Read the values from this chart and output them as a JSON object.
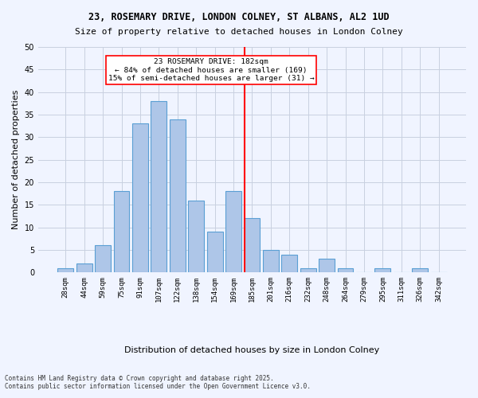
{
  "title1": "23, ROSEMARY DRIVE, LONDON COLNEY, ST ALBANS, AL2 1UD",
  "title2": "Size of property relative to detached houses in London Colney",
  "xlabel": "Distribution of detached houses by size in London Colney",
  "ylabel": "Number of detached properties",
  "categories": [
    "28sqm",
    "44sqm",
    "59sqm",
    "75sqm",
    "91sqm",
    "107sqm",
    "122sqm",
    "138sqm",
    "154sqm",
    "169sqm",
    "185sqm",
    "201sqm",
    "216sqm",
    "232sqm",
    "248sqm",
    "264sqm",
    "279sqm",
    "295sqm",
    "311sqm",
    "326sqm",
    "342sqm"
  ],
  "values": [
    1,
    2,
    6,
    18,
    33,
    38,
    34,
    16,
    9,
    18,
    12,
    5,
    4,
    1,
    3,
    1,
    0,
    1,
    0,
    1,
    0
  ],
  "bar_color": "#aec6e8",
  "bar_edge_color": "#5a9fd4",
  "vline_x": 10,
  "vline_label": "23 ROSEMARY DRIVE: 182sqm",
  "vline_color": "red",
  "annotation_line1": "23 ROSEMARY DRIVE: 182sqm",
  "annotation_line2": "← 84% of detached houses are smaller (169)",
  "annotation_line3": "15% of semi-detached houses are larger (31) →",
  "ylim": [
    0,
    50
  ],
  "yticks": [
    0,
    5,
    10,
    15,
    20,
    25,
    30,
    35,
    40,
    45,
    50
  ],
  "footer1": "Contains HM Land Registry data © Crown copyright and database right 2025.",
  "footer2": "Contains public sector information licensed under the Open Government Licence v3.0.",
  "background_color": "#f0f4ff",
  "plot_background": "#f0f4ff",
  "grid_color": "#c8d0e0"
}
